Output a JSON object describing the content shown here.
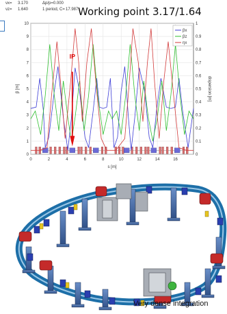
{
  "header": {
    "nux_label": "νx=",
    "nux_value": "3.170",
    "nuz_label": "νz=",
    "nuz_value": "1.640",
    "dpp_text": "Δp/p=0.000",
    "period_text": "1 period, C=",
    "circumference": "17.987"
  },
  "title": "Working point 3.17/1.64",
  "ip_label": "IP",
  "caption": "Very dense integration",
  "colors": {
    "beta_x": "#3b3bd6",
    "beta_z": "#2fbf2f",
    "eta_x": "#d23a3a",
    "ip_arrow": "#e01010",
    "magnet_blue": "#6b6bd6",
    "magnet_red": "#d87070"
  },
  "chart_data": {
    "type": "line",
    "title": "",
    "xlabel": "s [m]",
    "ylabel": "β [m]",
    "y2label": "dispersion [m]",
    "xlim": [
      0,
      18
    ],
    "ylim": [
      0,
      10
    ],
    "y2lim": [
      0,
      1
    ],
    "xticks": [
      0,
      2,
      4,
      6,
      8,
      10,
      12,
      14,
      16
    ],
    "yticks": [
      0,
      1,
      2,
      3,
      4,
      5,
      6,
      7,
      8,
      9,
      10
    ],
    "y2ticks": [
      0,
      0.1,
      0.2,
      0.3,
      0.4,
      0.5,
      0.6,
      0.7,
      0.8,
      0.9,
      1
    ],
    "grid": true,
    "legend_position": "top-right",
    "series": [
      {
        "name": "βx",
        "color_key": "beta_x",
        "x": [
          0,
          0.6,
          1.0,
          1.4,
          1.6,
          2.0,
          2.6,
          3.0,
          3.6,
          4.1,
          4.5,
          4.9,
          5.4,
          6.0,
          6.4,
          6.9,
          7.3,
          7.6,
          8.0,
          8.4,
          8.8,
          9.0,
          9.2,
          9.6,
          10.0,
          10.4,
          10.8,
          11.1,
          11.5,
          12.0,
          12.6,
          13.1,
          13.5,
          13.9,
          14.4,
          15.0,
          15.5,
          16.0,
          16.4,
          16.8,
          17.4,
          18.0
        ],
        "y": [
          3.5,
          3.6,
          5.8,
          3.3,
          0.5,
          1.3,
          4.8,
          6.7,
          2.8,
          0.3,
          2.8,
          6.6,
          4.8,
          1.3,
          0.5,
          3.3,
          5.8,
          3.6,
          3.5,
          3.6,
          5.8,
          3.3,
          0.5,
          1.3,
          4.8,
          6.7,
          2.8,
          0.3,
          2.8,
          6.6,
          4.8,
          1.3,
          0.5,
          3.3,
          5.8,
          3.6,
          3.5,
          3.6,
          5.8,
          3.3,
          0.5,
          3.5
        ]
      },
      {
        "name": "βz",
        "color_key": "beta_z",
        "x": [
          0,
          0.5,
          1.1,
          1.6,
          2.1,
          2.6,
          3.1,
          3.6,
          4.1,
          4.5,
          4.9,
          5.4,
          5.9,
          6.4,
          6.9,
          7.4,
          8.0,
          8.6,
          9.0,
          9.5,
          10.0,
          10.5,
          11.0,
          11.5,
          12.0,
          12.5,
          13.0,
          13.5,
          14.0,
          14.5,
          15.0,
          15.5,
          16.0,
          16.5,
          17.0,
          17.5,
          18.0
        ],
        "y": [
          2.7,
          3.3,
          1.5,
          4.5,
          8.4,
          4.5,
          1.8,
          5.6,
          2.8,
          1.0,
          2.8,
          5.6,
          1.8,
          4.5,
          8.4,
          4.5,
          1.5,
          3.3,
          2.7,
          3.3,
          1.5,
          4.5,
          8.4,
          4.5,
          1.8,
          5.6,
          2.8,
          1.0,
          2.8,
          5.6,
          1.8,
          4.5,
          8.4,
          4.5,
          1.5,
          3.3,
          2.7
        ]
      },
      {
        "name": "ηx",
        "color_key": "eta_x",
        "x": [
          0,
          1.0,
          1.8,
          2.3,
          2.9,
          3.3,
          3.8,
          4.4,
          4.9,
          5.3,
          5.7,
          6.2,
          6.7,
          7.2,
          7.8,
          8.4,
          9.4,
          10.4,
          10.9,
          11.3,
          11.9,
          12.4,
          12.9,
          13.3,
          13.7,
          14.2,
          14.7,
          15.2,
          15.8,
          16.4,
          17.2,
          18.0
        ],
        "y": [
          0.03,
          0.03,
          0.05,
          0.45,
          0.86,
          0.55,
          0.12,
          0.55,
          0.96,
          0.7,
          0.25,
          0.7,
          0.96,
          0.55,
          0.12,
          0.03,
          0.03,
          0.12,
          0.55,
          0.96,
          0.7,
          0.25,
          0.7,
          0.96,
          0.55,
          0.12,
          0.55,
          0.86,
          0.45,
          0.05,
          0.03,
          0.03
        ]
      }
    ],
    "magnets": {
      "dipoles": [
        1.6,
        4.6,
        7.2,
        10.6,
        13.6,
        16.2
      ],
      "quads": [
        0.6,
        1.0,
        2.2,
        2.7,
        3.2,
        3.7,
        4.0,
        5.3,
        5.6,
        6.1,
        6.6,
        7.9,
        8.3,
        9.4,
        9.8,
        10.2,
        11.2,
        11.7,
        12.2,
        12.7,
        13.0,
        14.3,
        14.6,
        15.1,
        15.6,
        16.9,
        17.3
      ]
    }
  }
}
